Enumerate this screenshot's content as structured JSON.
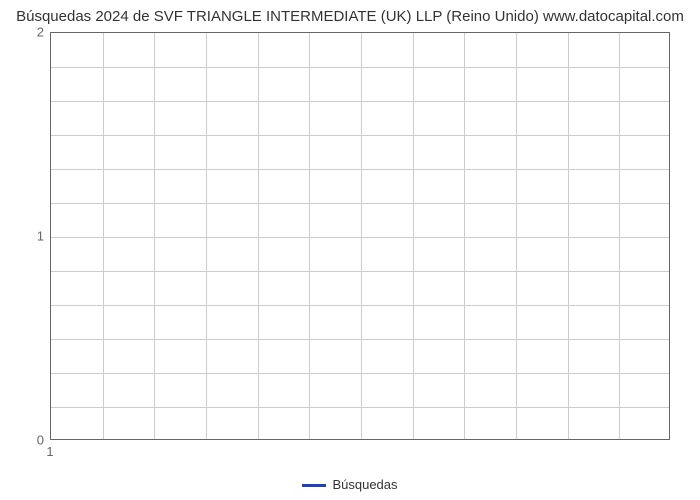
{
  "chart": {
    "type": "line",
    "title": "Búsquedas 2024 de SVF TRIANGLE INTERMEDIATE (UK) LLP (Reino Unido) www.datocapital.com",
    "title_fontsize": 15,
    "title_color": "#333333",
    "background_color": "#ffffff",
    "plot_border_color": "#666666",
    "grid_color": "#cccccc",
    "xlim": [
      1,
      12
    ],
    "ylim": [
      0,
      2
    ],
    "x_major_ticks": [
      1
    ],
    "y_major_ticks": [
      0,
      1,
      2
    ],
    "x_minor_gridlines_count": 11,
    "y_minor_gridlines_count": 11,
    "tick_fontsize": 13,
    "tick_color": "#666666",
    "series": [
      {
        "name": "Búsquedas",
        "color": "#2040c0",
        "line_width": 3,
        "x": [
          1
        ],
        "y": [
          0
        ]
      }
    ],
    "legend": {
      "position": "bottom",
      "label": "Búsquedas",
      "swatch_color": "#2040c0",
      "fontsize": 13
    }
  }
}
